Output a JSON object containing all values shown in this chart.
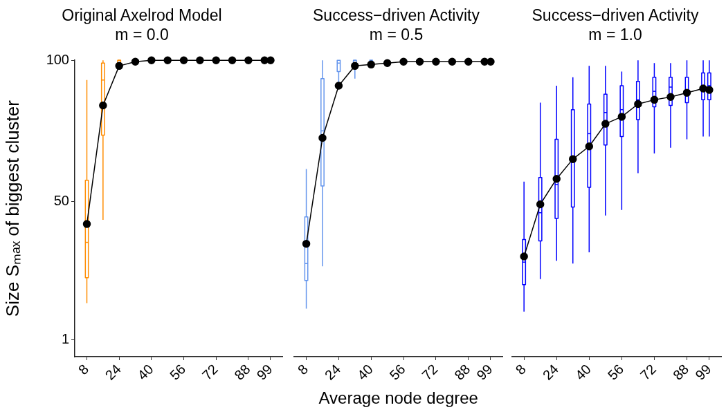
{
  "chart_data": [
    {
      "type": "box",
      "title": "Original Axelrod Model",
      "subtitle": "m = 0.0",
      "ylabel": "Size Sₘₐₓ of biggest cluster",
      "xlim": [
        2,
        105
      ],
      "xticks": [
        8,
        24,
        40,
        56,
        72,
        88,
        99
      ],
      "ylim": [
        -5,
        100
      ],
      "yticks": [
        1,
        50,
        100
      ],
      "grid": false,
      "legend": false,
      "marker": "circle",
      "series": [
        {
          "type": "box",
          "color": "#ff8c00",
          "x": [
            8,
            16,
            24,
            32,
            40,
            48,
            56,
            64,
            72,
            80,
            88,
            96,
            99
          ],
          "boxes": [
            {
              "low": 14,
              "q1": 23,
              "median": 35.5,
              "q3": 57.5,
              "high": 93
            },
            {
              "low": 43.5,
              "q1": 73.5,
              "median": 93,
              "q3": 99,
              "high": 100
            },
            {
              "low": 97,
              "q1": 99,
              "median": 100,
              "q3": 100,
              "high": 100
            },
            {
              "low": 100,
              "q1": 100,
              "median": 100,
              "q3": 100,
              "high": 100
            },
            {
              "low": 100,
              "q1": 100,
              "median": 100,
              "q3": 100,
              "high": 100
            },
            {
              "low": 100,
              "q1": 100,
              "median": 100,
              "q3": 100,
              "high": 100
            },
            {
              "low": 100,
              "q1": 100,
              "median": 100,
              "q3": 100,
              "high": 100
            },
            {
              "low": 100,
              "q1": 100,
              "median": 100,
              "q3": 100,
              "high": 100
            },
            {
              "low": 100,
              "q1": 100,
              "median": 100,
              "q3": 100,
              "high": 100
            },
            {
              "low": 100,
              "q1": 100,
              "median": 100,
              "q3": 100,
              "high": 100
            },
            {
              "low": 100,
              "q1": 100,
              "median": 100,
              "q3": 100,
              "high": 100
            },
            {
              "low": 100,
              "q1": 100,
              "median": 100,
              "q3": 100,
              "high": 100
            },
            {
              "low": 100,
              "q1": 100,
              "median": 100,
              "q3": 100,
              "high": 100
            }
          ]
        },
        {
          "type": "line",
          "color": "#000000",
          "x": [
            8,
            16,
            24,
            32,
            40,
            48,
            56,
            64,
            72,
            80,
            88,
            96,
            99
          ],
          "values": [
            42,
            84,
            98,
            99.5,
            100,
            100,
            100,
            100,
            100,
            100,
            100,
            100,
            100
          ]
        }
      ]
    },
    {
      "type": "box",
      "title": "Success−driven Activity",
      "subtitle": "m = 0.5",
      "xlabel": "Average node degree",
      "xlim": [
        2,
        105
      ],
      "xticks": [
        8,
        24,
        40,
        56,
        72,
        88,
        99
      ],
      "ylim": [
        -5,
        100
      ],
      "yticks": [
        1,
        50,
        100
      ],
      "tick_labels": "x",
      "grid": false,
      "legend": false,
      "marker": "circle",
      "series": [
        {
          "type": "box",
          "color": "#6495ed",
          "x": [
            8,
            16,
            24,
            32,
            40,
            48,
            56,
            64,
            72,
            80,
            88,
            96,
            99
          ],
          "boxes": [
            {
              "low": 12,
              "q1": 22,
              "median": 28,
              "q3": 44.5,
              "high": 61.5
            },
            {
              "low": 27,
              "q1": 55.5,
              "median": 75,
              "q3": 93.5,
              "high": 100
            },
            {
              "low": 92,
              "q1": 96,
              "median": 99,
              "q3": 100,
              "high": 100
            },
            {
              "low": 93.5,
              "q1": 98,
              "median": 100,
              "q3": 100,
              "high": 100
            },
            {
              "low": 100,
              "q1": 100,
              "median": 100,
              "q3": 100,
              "high": 100
            },
            {
              "low": 100,
              "q1": 100,
              "median": 100,
              "q3": 100,
              "high": 100
            },
            {
              "low": 100,
              "q1": 100,
              "median": 100,
              "q3": 100,
              "high": 100
            },
            {
              "low": 100,
              "q1": 100,
              "median": 100,
              "q3": 100,
              "high": 100
            },
            {
              "low": 100,
              "q1": 100,
              "median": 100,
              "q3": 100,
              "high": 100
            },
            {
              "low": 100,
              "q1": 100,
              "median": 100,
              "q3": 100,
              "high": 100
            },
            {
              "low": 100,
              "q1": 100,
              "median": 100,
              "q3": 100,
              "high": 100
            },
            {
              "low": 100,
              "q1": 100,
              "median": 100,
              "q3": 100,
              "high": 100
            },
            {
              "low": 100,
              "q1": 100,
              "median": 100,
              "q3": 100,
              "high": 100
            }
          ]
        },
        {
          "type": "line",
          "color": "#000000",
          "x": [
            8,
            16,
            24,
            32,
            40,
            48,
            56,
            64,
            72,
            80,
            88,
            96,
            99
          ],
          "values": [
            35,
            72.5,
            91,
            98,
            98.5,
            99,
            99.5,
            99.5,
            99.5,
            99.5,
            99.5,
            99.5,
            99.5
          ]
        }
      ]
    },
    {
      "type": "box",
      "title": "Success−driven Activity",
      "subtitle": "m = 1.0",
      "xlim": [
        2,
        105
      ],
      "xticks": [
        8,
        24,
        40,
        56,
        72,
        88,
        99
      ],
      "ylim": [
        -5,
        100
      ],
      "yticks": [
        1,
        50,
        100
      ],
      "tick_labels": "x",
      "grid": false,
      "legend": false,
      "marker": "circle",
      "series": [
        {
          "type": "box",
          "color": "#0000ff",
          "x": [
            8,
            16,
            24,
            32,
            40,
            48,
            56,
            64,
            72,
            80,
            88,
            96,
            99
          ],
          "boxes": [
            {
              "low": 11,
              "q1": 20.5,
              "median": 28.5,
              "q3": 36.5,
              "high": 57
            },
            {
              "low": 22.5,
              "q1": 36,
              "median": 46,
              "q3": 58.5,
              "high": 85
            },
            {
              "low": 29,
              "q1": 44,
              "median": 56,
              "q3": 72,
              "high": 91
            },
            {
              "low": 28,
              "q1": 48,
              "median": 64.5,
              "q3": 82.5,
              "high": 94
            },
            {
              "low": 32,
              "q1": 55,
              "median": 74,
              "q3": 84.5,
              "high": 98
            },
            {
              "low": 45,
              "q1": 70,
              "median": 81.5,
              "q3": 88,
              "high": 98
            },
            {
              "low": 47,
              "q1": 73,
              "median": 82.5,
              "q3": 91,
              "high": 96
            },
            {
              "low": 60,
              "q1": 79,
              "median": 86,
              "q3": 92.5,
              "high": 100
            },
            {
              "low": 67,
              "q1": 83.5,
              "median": 89,
              "q3": 94,
              "high": 99
            },
            {
              "low": 69,
              "q1": 84,
              "median": 90.5,
              "q3": 94,
              "high": 99
            },
            {
              "low": 72,
              "q1": 85,
              "median": 89.5,
              "q3": 94,
              "high": 100
            },
            {
              "low": 73,
              "q1": 86,
              "median": 91,
              "q3": 95.5,
              "high": 100
            },
            {
              "low": 73,
              "q1": 86,
              "median": 91,
              "q3": 95.5,
              "high": 100
            }
          ]
        },
        {
          "type": "line",
          "color": "#000000",
          "x": [
            8,
            16,
            24,
            32,
            40,
            48,
            56,
            64,
            72,
            80,
            88,
            96,
            99
          ],
          "values": [
            30.5,
            49,
            58,
            65,
            69.5,
            77.5,
            80,
            84.5,
            86,
            87,
            88.5,
            90,
            89.5
          ]
        }
      ]
    }
  ]
}
